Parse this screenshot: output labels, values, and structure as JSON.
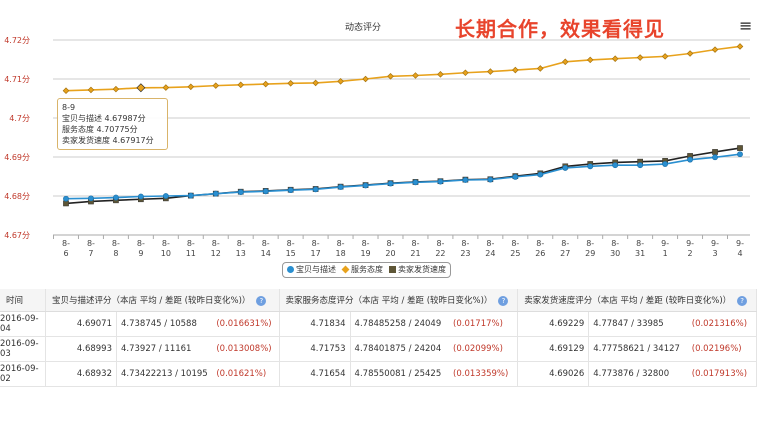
{
  "header": {
    "title": "动态评分",
    "promo": "长期合作，效果看得见",
    "menu_icon": "hamburger-menu-icon"
  },
  "tooltip": {
    "date": "8-9",
    "lines": [
      "宝贝与描述 4.67987分",
      "服务态度 4.70775分",
      "卖家发货速度 4.67917分"
    ]
  },
  "chart_data": {
    "type": "line",
    "title": "动态评分",
    "categories": [
      "8-6",
      "8-7",
      "8-8",
      "8-9",
      "8-10",
      "8-11",
      "8-12",
      "8-13",
      "8-14",
      "8-15",
      "8-17",
      "8-18",
      "8-19",
      "8-20",
      "8-21",
      "8-22",
      "8-23",
      "8-24",
      "8-25",
      "8-26",
      "8-27",
      "8-29",
      "8-30",
      "8-31",
      "9-1",
      "9-2",
      "9-3",
      "9-4"
    ],
    "ylim": [
      4.67,
      4.72
    ],
    "yticks": [
      "4.67分",
      "4.68分",
      "4.69分",
      "4.7分",
      "4.71分",
      "4.72分"
    ],
    "ytick_values": [
      4.67,
      4.68,
      4.69,
      4.7,
      4.71,
      4.72
    ],
    "grid": true,
    "legend": "bottom",
    "series": [
      {
        "name": "宝贝与描述",
        "color": "#2a8fd0",
        "marker": "circle",
        "values": [
          4.6793,
          4.6794,
          4.6796,
          4.67987,
          4.68,
          4.6801,
          4.6806,
          4.681,
          4.6812,
          4.6815,
          4.6817,
          4.6823,
          4.6827,
          4.6832,
          4.6835,
          4.6837,
          4.6841,
          4.6842,
          4.6849,
          4.6855,
          4.6872,
          4.6876,
          4.6879,
          4.6879,
          4.6882,
          4.68932,
          4.68993,
          4.69071
        ]
      },
      {
        "name": "服务态度",
        "color": "#e8a21c",
        "marker": "diamond",
        "values": [
          4.707,
          4.7072,
          4.7074,
          4.70775,
          4.7078,
          4.708,
          4.7083,
          4.7085,
          4.7087,
          4.7089,
          4.709,
          4.7094,
          4.71,
          4.7107,
          4.7109,
          4.7112,
          4.7116,
          4.7119,
          4.7123,
          4.7127,
          4.7144,
          4.7149,
          4.7152,
          4.7155,
          4.7158,
          4.71654,
          4.71753,
          4.71834
        ]
      },
      {
        "name": "卖家发货速度",
        "color": "#5e5636",
        "marker": "square",
        "values": [
          4.6781,
          4.6786,
          4.6789,
          4.67917,
          4.6794,
          4.6801,
          4.6806,
          4.6811,
          4.6813,
          4.6816,
          4.6818,
          4.6824,
          4.6828,
          4.6833,
          4.6836,
          4.6838,
          4.6842,
          4.6843,
          4.6851,
          4.6858,
          4.6876,
          4.6882,
          4.6886,
          4.6888,
          4.689,
          4.69026,
          4.69129,
          4.69229
        ]
      }
    ]
  },
  "table": {
    "headers": [
      "时间",
      "宝贝与描述评分（本店  平均 / 差距 (较昨日变化%)）",
      "卖家服务态度评分（本店  平均 / 差距 (较昨日变化%)）",
      "卖家发货速度评分（本店  平均 / 差距 (较昨日变化%)）"
    ],
    "rows": [
      {
        "date": "2016-09-04",
        "c1": {
          "score": "4.69071",
          "avg": "4.738745 / 10588",
          "chg": "(0.016631%)"
        },
        "c2": {
          "score": "4.71834",
          "avg": "4.78485258 / 24049",
          "chg": "(0.01717%)"
        },
        "c3": {
          "score": "4.69229",
          "avg": "4.77847 / 33985",
          "chg": "(0.021316%)"
        }
      },
      {
        "date": "2016-09-03",
        "c1": {
          "score": "4.68993",
          "avg": "4.73927 / 11161",
          "chg": "(0.013008%)"
        },
        "c2": {
          "score": "4.71753",
          "avg": "4.78401875 / 24204",
          "chg": "(0.02099%)"
        },
        "c3": {
          "score": "4.69129",
          "avg": "4.77758621 / 34127",
          "chg": "(0.02196%)"
        }
      },
      {
        "date": "2016-09-02",
        "c1": {
          "score": "4.68932",
          "avg": "4.73422213 / 10195",
          "chg": "(0.01621%)"
        },
        "c2": {
          "score": "4.71654",
          "avg": "4.78550081 / 25425",
          "chg": "(0.013359%)"
        },
        "c3": {
          "score": "4.69026",
          "avg": "4.773876 / 32800",
          "chg": "(0.017913%)"
        }
      }
    ]
  }
}
